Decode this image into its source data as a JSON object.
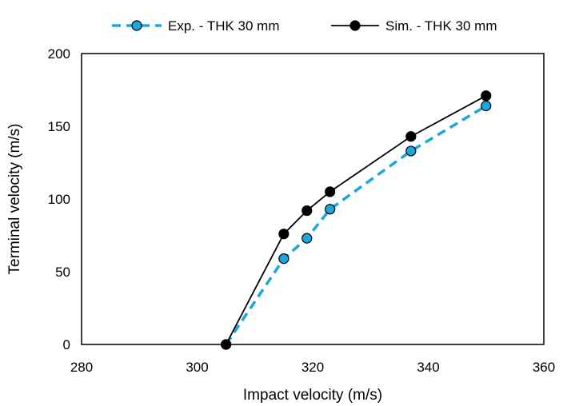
{
  "chart_data": {
    "type": "line",
    "xlabel": "Impact velocity (m/s)",
    "ylabel": "Terminal velocity (m/s)",
    "xlim": [
      280,
      360
    ],
    "ylim": [
      0,
      200
    ],
    "xticks": [
      280,
      300,
      320,
      340,
      360
    ],
    "yticks": [
      0,
      50,
      100,
      150,
      200
    ],
    "grid": false,
    "legend_position": "top",
    "series": [
      {
        "name": "Exp. - THK 30 mm",
        "color": "#1CA6E0",
        "line_style": "dashed",
        "marker_fill": "#1CA6E0",
        "x": [
          305,
          315,
          319,
          323,
          337,
          350
        ],
        "y": [
          0,
          59,
          73,
          93,
          133,
          164
        ]
      },
      {
        "name": "Sim. - THK 30 mm",
        "color": "#000000",
        "line_style": "solid",
        "marker_fill": "#000000",
        "x": [
          305,
          315,
          319,
          323,
          337,
          350
        ],
        "y": [
          0,
          76,
          92,
          105,
          143,
          171
        ]
      }
    ]
  }
}
